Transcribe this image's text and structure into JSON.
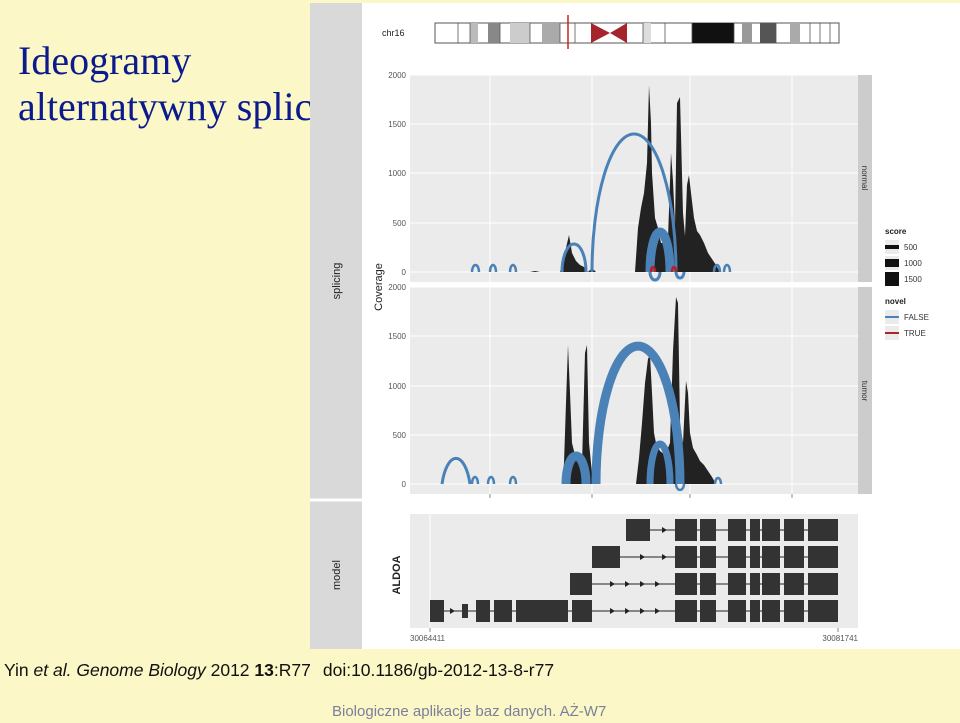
{
  "slide": {
    "title_line1": "Ideogramy",
    "title_line2": "alternatywny splicing",
    "footer": "Biologiczne aplikacje baz danych. AŻ-W7"
  },
  "citation": {
    "authors": "Yin ",
    "etal": "et al.",
    "journal": "Genome Biology",
    "year": "2012",
    "volume": "13",
    "article": ":R77",
    "doi": "doi:10.1186/gb-2012-13-8-r77"
  },
  "figure": {
    "chromosome": "chr16",
    "track_labels": {
      "splicing": "splicing",
      "model": "model"
    },
    "y_axis_label": "Coverage",
    "gene_label": "ALDOA",
    "y_ticks": [
      "2000",
      "1500",
      "1000",
      "500",
      "0"
    ],
    "facet_labels": {
      "top": "normal",
      "bottom": "tumor"
    },
    "x_start": "30064411",
    "x_end": "30081741",
    "legend": {
      "score_title": "score",
      "score_items": [
        "500",
        "1000",
        "1500"
      ],
      "novel_title": "novel",
      "novel_items": [
        "FALSE",
        "TRUE"
      ],
      "colors": {
        "false": "#4a82b8",
        "true": "#b22222"
      }
    }
  }
}
